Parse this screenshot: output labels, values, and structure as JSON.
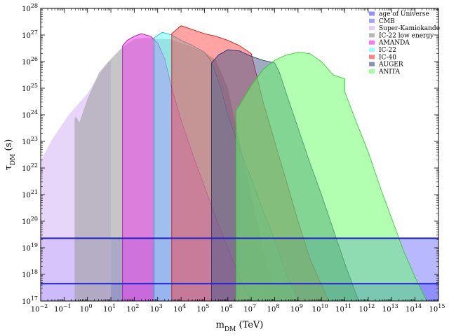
{
  "chart_data": {
    "type": "area",
    "title": "",
    "xlabel": {
      "base": "m",
      "sub": "DM",
      "unit": " (TeV)"
    },
    "ylabel": {
      "base": "τ",
      "sub": "DM",
      "unit": " (s)"
    },
    "xscale": "log",
    "yscale": "log",
    "xlim_exp": [
      -2,
      15
    ],
    "ylim_exp": [
      17,
      28
    ],
    "x_tick_exps": [
      -2,
      -1,
      0,
      1,
      2,
      3,
      4,
      5,
      6,
      7,
      8,
      9,
      10,
      11,
      12,
      13,
      14,
      15
    ],
    "y_tick_exps": [
      17,
      18,
      19,
      20,
      21,
      22,
      23,
      24,
      25,
      26,
      27,
      28
    ],
    "tick_base": "10",
    "legend_position": "top-right",
    "hlines": [
      {
        "series": "CMB",
        "log10_tau": 19.36,
        "color": "#2020cc"
      },
      {
        "series": "CMB",
        "log10_tau": 17.65,
        "color": "#2020cc"
      }
    ],
    "series": [
      {
        "name": "age of Universe",
        "fill": "#0000ff",
        "stroke": "#0000ff",
        "opacity": 0.28,
        "points": [
          [
            -2,
            17
          ],
          [
            15,
            17
          ],
          [
            15,
            19.36
          ],
          [
            -2,
            19.36
          ]
        ]
      },
      {
        "name": "CMB",
        "fill": "#3333ff",
        "stroke": "#2020cc",
        "opacity": 0.3,
        "points": [
          [
            -2,
            17
          ],
          [
            15,
            17
          ],
          [
            15,
            17.65
          ],
          [
            -2,
            17.65
          ]
        ]
      },
      {
        "name": "Super-Kamiokande",
        "fill": "#e0c8f8",
        "stroke": "none",
        "opacity": 0.75,
        "points": [
          [
            -2,
            17
          ],
          [
            -1.98,
            22.3
          ],
          [
            -1.5,
            23.1
          ],
          [
            -0.8,
            24.0
          ],
          [
            0,
            24.8
          ],
          [
            0.5,
            25.5
          ],
          [
            0.9,
            26.0
          ],
          [
            1,
            26.05
          ],
          [
            1,
            17
          ]
        ]
      },
      {
        "name": "IC-22 low energy",
        "fill": "#a0a0a0",
        "stroke": "none",
        "opacity": 0.6,
        "points": [
          [
            -0.55,
            17
          ],
          [
            -0.55,
            23.85
          ],
          [
            -0.5,
            23.95
          ],
          [
            -0.35,
            23.7
          ],
          [
            0,
            24.6
          ],
          [
            0.5,
            25.6
          ],
          [
            1,
            26.1
          ],
          [
            1.5,
            26.55
          ],
          [
            2,
            26.85
          ],
          [
            2.5,
            26.9
          ],
          [
            3,
            26.85
          ],
          [
            3.5,
            26.85
          ],
          [
            4,
            26.7
          ],
          [
            4.5,
            26.55
          ],
          [
            5,
            26.35
          ],
          [
            5.5,
            26.05
          ],
          [
            6,
            25.0
          ],
          [
            6.5,
            23.0
          ],
          [
            7,
            21.0
          ],
          [
            7.5,
            19.0
          ],
          [
            8,
            17.3
          ],
          [
            8.1,
            17
          ]
        ]
      },
      {
        "name": "AMANDA",
        "fill": "#ee44ee",
        "stroke": "#aa00aa",
        "opacity": 0.55,
        "points": [
          [
            1.5,
            17
          ],
          [
            1.5,
            26.6
          ],
          [
            1.7,
            26.8
          ],
          [
            2,
            26.95
          ],
          [
            2.3,
            27.05
          ],
          [
            2.7,
            26.95
          ],
          [
            3,
            26.7
          ],
          [
            3.3,
            26.1
          ],
          [
            3.6,
            25.0
          ],
          [
            4,
            23.8
          ],
          [
            4.5,
            22.5
          ],
          [
            5,
            21.3
          ],
          [
            5.5,
            20.1
          ],
          [
            6,
            19.0
          ],
          [
            6.5,
            17.9
          ],
          [
            7,
            17
          ]
        ]
      },
      {
        "name": "IC-22",
        "fill": "#66ffff",
        "stroke": "#00bbbb",
        "opacity": 0.5,
        "points": [
          [
            2.85,
            17
          ],
          [
            2.85,
            26.9
          ],
          [
            3.2,
            27.1
          ],
          [
            3.6,
            27.0
          ],
          [
            4,
            26.8
          ],
          [
            4.5,
            26.6
          ],
          [
            5,
            26.35
          ],
          [
            5.3,
            26.0
          ],
          [
            5.7,
            25.0
          ],
          [
            6,
            24.0
          ],
          [
            6.5,
            22.7
          ],
          [
            7,
            21.6
          ],
          [
            7.5,
            20.4
          ],
          [
            8,
            19.3
          ],
          [
            8.5,
            18.0
          ],
          [
            9,
            17
          ]
        ]
      },
      {
        "name": "IC-40",
        "fill": "#ff3333",
        "stroke": "#cc0000",
        "opacity": 0.45,
        "points": [
          [
            3.6,
            17
          ],
          [
            3.6,
            27.05
          ],
          [
            4,
            27.35
          ],
          [
            4.5,
            27.2
          ],
          [
            5,
            27.05
          ],
          [
            5.5,
            26.95
          ],
          [
            6,
            26.8
          ],
          [
            6.5,
            26.6
          ],
          [
            7,
            26.3
          ],
          [
            7.5,
            24.5
          ],
          [
            8,
            23.0
          ],
          [
            8.5,
            21.5
          ],
          [
            9,
            20.0
          ],
          [
            9.5,
            18.6
          ],
          [
            10,
            17.6
          ],
          [
            10.3,
            17
          ]
        ]
      },
      {
        "name": "AUGER",
        "fill": "#445588",
        "stroke": "#1a2a66",
        "opacity": 0.5,
        "points": [
          [
            5.3,
            17
          ],
          [
            5.3,
            25.95
          ],
          [
            5.6,
            26.25
          ],
          [
            6,
            26.45
          ],
          [
            6.5,
            26.4
          ],
          [
            7,
            26.2
          ],
          [
            7.5,
            26.05
          ],
          [
            8,
            25.95
          ],
          [
            8.2,
            25.6
          ],
          [
            8.5,
            24.8
          ],
          [
            9,
            23.5
          ],
          [
            9.5,
            22.2
          ],
          [
            10,
            21.0
          ],
          [
            10.5,
            19.7
          ],
          [
            11,
            18.4
          ],
          [
            11.5,
            17.2
          ],
          [
            11.6,
            17
          ]
        ]
      },
      {
        "name": "ANITA",
        "fill": "#66ff66",
        "stroke": "#22cc22",
        "opacity": 0.5,
        "points": [
          [
            6.35,
            17
          ],
          [
            6.35,
            24.15
          ],
          [
            7,
            25.1
          ],
          [
            7.5,
            25.7
          ],
          [
            8,
            26.05
          ],
          [
            8.5,
            26.25
          ],
          [
            9,
            26.35
          ],
          [
            9.5,
            26.3
          ],
          [
            10,
            26.0
          ],
          [
            10.5,
            25.5
          ],
          [
            11,
            25.35
          ],
          [
            11,
            24.85
          ],
          [
            11.5,
            23.7
          ],
          [
            12,
            22.6
          ],
          [
            12.5,
            21.3
          ],
          [
            13,
            20.1
          ],
          [
            13.5,
            18.9
          ],
          [
            14,
            17.9
          ],
          [
            14.5,
            17
          ]
        ]
      }
    ]
  }
}
